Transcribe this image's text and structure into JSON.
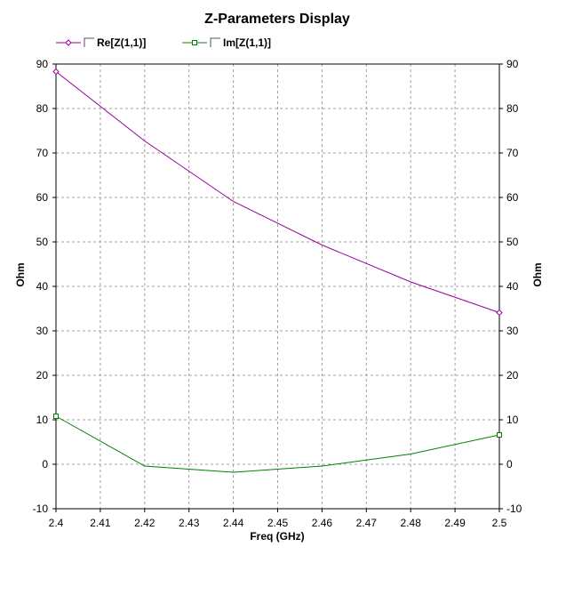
{
  "chart_data": {
    "type": "line",
    "title": "Z-Parameters Display",
    "xlabel": "Freq (GHz)",
    "ylabel_left": "Ohm",
    "ylabel_right": "Ohm",
    "xlim": [
      2.4,
      2.5
    ],
    "ylim": [
      -10,
      90
    ],
    "x_ticks": [
      "2.4",
      "2.41",
      "2.42",
      "2.43",
      "2.44",
      "2.45",
      "2.46",
      "2.47",
      "2.48",
      "2.49",
      "2.5"
    ],
    "y_ticks": [
      "90",
      "80",
      "70",
      "60",
      "50",
      "40",
      "30",
      "20",
      "10",
      "0",
      "-10"
    ],
    "grid": true,
    "legend_position": "top-left",
    "x": [
      2.4,
      2.42,
      2.44,
      2.46,
      2.48,
      2.5
    ],
    "series": [
      {
        "name": "Re[Z(1,1)]",
        "color": "#990099",
        "marker": "diamond",
        "values": [
          88.3,
          72.7,
          59.1,
          49.3,
          41.0,
          34.1
        ]
      },
      {
        "name": "Im[Z(1,1)]",
        "color": "#008000",
        "marker": "square",
        "values": [
          10.8,
          -0.4,
          -1.8,
          -0.4,
          2.3,
          6.6
        ]
      }
    ]
  }
}
